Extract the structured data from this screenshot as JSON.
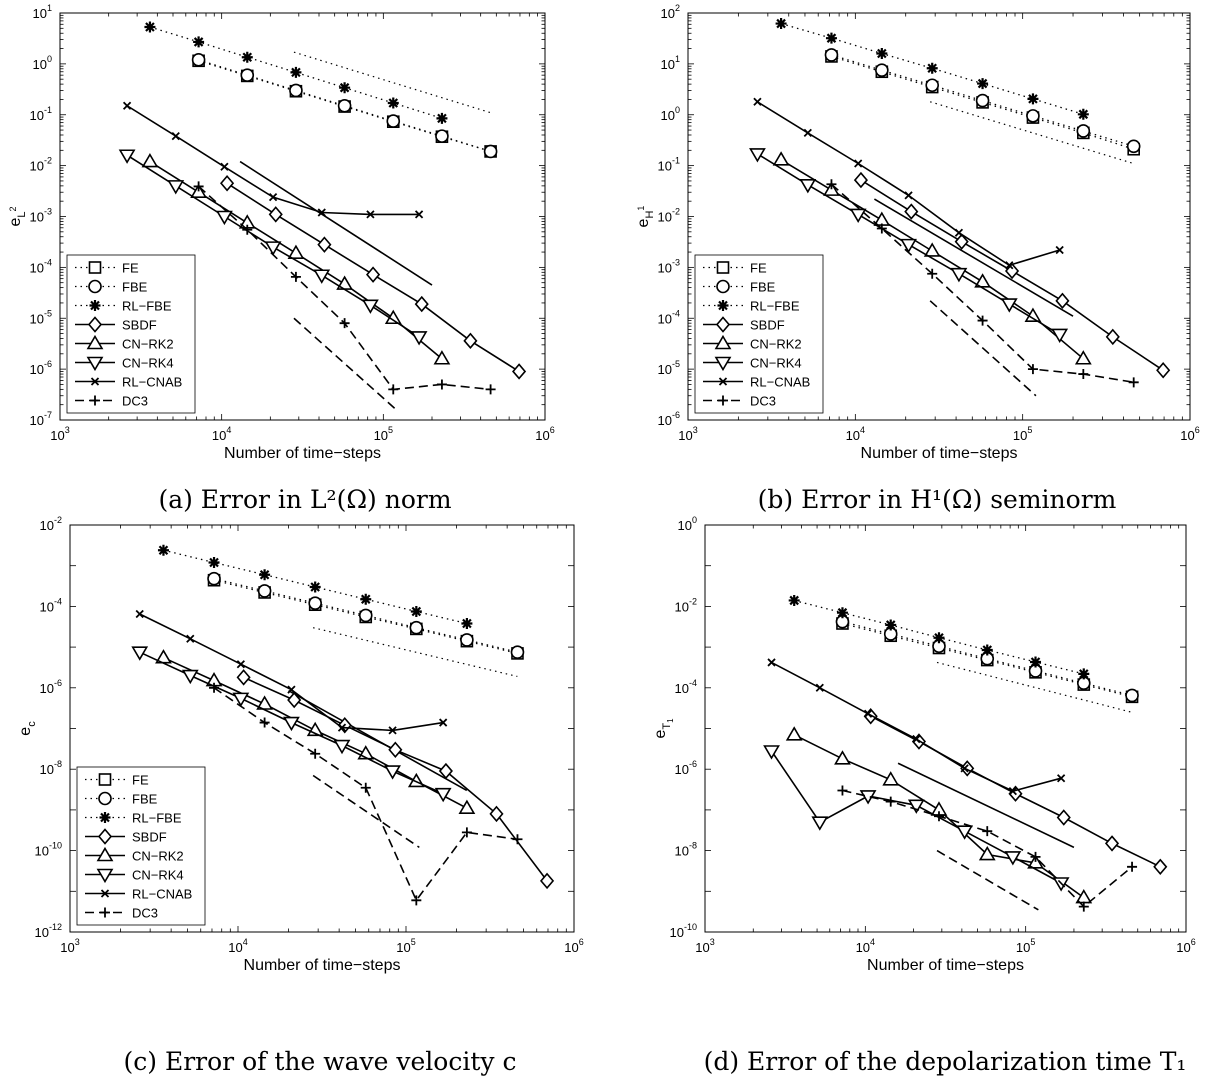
{
  "chart_data": [
    {
      "type": "line",
      "caption": "(a) Error in L²(Ω) norm",
      "xlabel": "Number of time−steps",
      "ylabel": "e_L²",
      "ylabel_main": "e",
      "ylabel_sub": "L",
      "ylabel_sup": "2",
      "xscale": "log",
      "yscale": "log",
      "xlim": [
        1000,
        1000000
      ],
      "ylim": [
        1e-07,
        10
      ],
      "x_ticks": [
        "10^3",
        "10^4",
        "10^5",
        "10^6"
      ],
      "y_ticks": [
        "10^-7",
        "10^-6",
        "10^-5",
        "10^-4",
        "10^-3",
        "10^-2",
        "10^-1",
        "10^0",
        "10^1"
      ],
      "legend_position": "bottom-left",
      "series": [
        {
          "name": "FE",
          "style": "dotted",
          "marker": "square",
          "x": [
            7200,
            14400,
            28800,
            57600,
            115200,
            230400,
            460800
          ],
          "y": [
            1.15,
            0.58,
            0.29,
            0.145,
            0.073,
            0.037,
            0.019
          ]
        },
        {
          "name": "FBE",
          "style": "dotted",
          "marker": "circle",
          "x": [
            7200,
            14400,
            28800,
            57600,
            115200,
            230400,
            460800
          ],
          "y": [
            1.2,
            0.6,
            0.3,
            0.15,
            0.075,
            0.038,
            0.019
          ]
        },
        {
          "name": "RL−FBE",
          "style": "dotted",
          "marker": "star",
          "x": [
            3600,
            7200,
            14400,
            28800,
            57600,
            115200,
            230400
          ],
          "y": [
            5.3,
            2.7,
            1.35,
            0.68,
            0.34,
            0.17,
            0.085
          ]
        },
        {
          "name": "SBDF",
          "style": "solid",
          "marker": "diamond",
          "x": [
            10800,
            21600,
            43200,
            86400,
            172800,
            345600,
            691200
          ],
          "y": [
            0.0045,
            0.0011,
            0.00028,
            7.2e-05,
            1.9e-05,
            3.6e-06,
            9e-07
          ]
        },
        {
          "name": "CN−RK2",
          "style": "solid",
          "marker": "triangle-up",
          "x": [
            3600,
            7200,
            14400,
            28800,
            57600,
            115200,
            230400
          ],
          "y": [
            0.012,
            0.003,
            0.00075,
            0.00019,
            4.7e-05,
            1e-05,
            1.6e-06
          ]
        },
        {
          "name": "CN−RK4",
          "style": "solid",
          "marker": "triangle-down",
          "x": [
            2600,
            5200,
            10400,
            20800,
            41600,
            83200,
            166400
          ],
          "y": [
            0.016,
            0.004,
            0.001,
            0.00025,
            7e-05,
            1.8e-05,
            4.3e-06
          ]
        },
        {
          "name": "RL−CNAB",
          "style": "solid",
          "marker": "x",
          "x": [
            2600,
            5200,
            10400,
            20800,
            41600,
            83200,
            166400
          ],
          "y": [
            0.15,
            0.038,
            0.0095,
            0.0024,
            0.0012,
            0.0011,
            0.0011
          ]
        },
        {
          "name": "DC3",
          "style": "dashed",
          "marker": "plus",
          "x": [
            7200,
            14400,
            28800,
            57600,
            115200,
            230400,
            460800
          ],
          "y": [
            0.0039,
            0.00055,
            6.5e-05,
            8e-06,
            4e-07,
            5e-07,
            4e-07
          ]
        }
      ],
      "reference_lines": [
        {
          "style": "dotted",
          "x": [
            28000,
            460000
          ],
          "y": [
            1.7,
            0.11
          ]
        },
        {
          "style": "solid",
          "x": [
            13000,
            200000
          ],
          "y": [
            0.012,
            4.5e-05
          ]
        },
        {
          "style": "dashed",
          "x": [
            28000,
            120000
          ],
          "y": [
            1e-05,
            1.6e-07
          ]
        }
      ]
    },
    {
      "type": "line",
      "caption": "(b) Error in H¹(Ω) seminorm",
      "xlabel": "Number of time−steps",
      "ylabel": "e_H¹",
      "ylabel_main": "e",
      "ylabel_sub": "H",
      "ylabel_sup": "1",
      "xscale": "log",
      "yscale": "log",
      "xlim": [
        1000,
        1000000
      ],
      "ylim": [
        1e-06,
        100
      ],
      "x_ticks": [
        "10^3",
        "10^4",
        "10^5",
        "10^6"
      ],
      "y_ticks": [
        "10^-6",
        "10^-5",
        "10^-4",
        "10^-3",
        "10^-2",
        "10^-1",
        "10^0",
        "10^1",
        "10^2"
      ],
      "legend_position": "bottom-left",
      "series": [
        {
          "name": "FE",
          "style": "dotted",
          "marker": "square",
          "x": [
            7200,
            14400,
            28800,
            57600,
            115200,
            230400,
            460800
          ],
          "y": [
            14,
            7,
            3.5,
            1.75,
            0.88,
            0.44,
            0.21
          ]
        },
        {
          "name": "FBE",
          "style": "dotted",
          "marker": "circle",
          "x": [
            7200,
            14400,
            28800,
            57600,
            115200,
            230400,
            460800
          ],
          "y": [
            15,
            7.5,
            3.8,
            1.9,
            0.95,
            0.48,
            0.24
          ]
        },
        {
          "name": "RL−FBE",
          "style": "dotted",
          "marker": "star",
          "x": [
            3600,
            7200,
            14400,
            28800,
            57600,
            115200,
            230400
          ],
          "y": [
            62,
            32,
            16,
            8.2,
            4.1,
            2.05,
            1.02
          ]
        },
        {
          "name": "SBDF",
          "style": "solid",
          "marker": "diamond",
          "x": [
            10800,
            21600,
            43200,
            86400,
            172800,
            345600,
            691200
          ],
          "y": [
            0.052,
            0.0125,
            0.0032,
            0.00085,
            0.00022,
            4.3e-05,
            9.5e-06
          ]
        },
        {
          "name": "CN−RK2",
          "style": "solid",
          "marker": "triangle-up",
          "x": [
            3600,
            7200,
            14400,
            28800,
            57600,
            115200,
            230400
          ],
          "y": [
            0.13,
            0.033,
            0.0085,
            0.0021,
            0.00052,
            0.00011,
            1.6e-05
          ]
        },
        {
          "name": "CN−RK4",
          "style": "solid",
          "marker": "triangle-down",
          "x": [
            2600,
            5200,
            10400,
            20800,
            41600,
            83200,
            166400
          ],
          "y": [
            0.17,
            0.042,
            0.011,
            0.0028,
            0.00075,
            0.00019,
            4.8e-05
          ]
        },
        {
          "name": "RL−CNAB",
          "style": "solid",
          "marker": "x",
          "x": [
            2600,
            5200,
            10400,
            20800,
            41600,
            83200,
            166400
          ],
          "y": [
            1.8,
            0.44,
            0.11,
            0.026,
            0.0048,
            0.0011,
            0.0022
          ]
        },
        {
          "name": "DC3",
          "style": "dashed",
          "marker": "plus",
          "x": [
            7200,
            14400,
            28800,
            57600,
            115200,
            230400,
            460800
          ],
          "y": [
            0.043,
            0.0058,
            0.00075,
            9e-05,
            1e-05,
            8e-06,
            5.5e-06
          ]
        }
      ],
      "reference_lines": [
        {
          "style": "dotted",
          "x": [
            28000,
            460000
          ],
          "y": [
            1.8,
            0.11
          ]
        },
        {
          "style": "solid",
          "x": [
            13000,
            200000
          ],
          "y": [
            0.022,
            0.00011
          ]
        },
        {
          "style": "dashed",
          "x": [
            28000,
            120000
          ],
          "y": [
            0.00022,
            3e-06
          ]
        }
      ]
    },
    {
      "type": "line",
      "caption": "(c) Error of the wave velocity c",
      "xlabel": "Number of time−steps",
      "ylabel": "e_c",
      "ylabel_main": "e",
      "ylabel_sub": "c",
      "ylabel_sup": "",
      "xscale": "log",
      "yscale": "log",
      "xlim": [
        1000,
        1000000
      ],
      "ylim": [
        1e-12,
        0.01
      ],
      "x_ticks": [
        "10^3",
        "10^4",
        "10^5",
        "10^6"
      ],
      "y_ticks": [
        "10^-12",
        "10^-10",
        "10^-8",
        "10^-6",
        "10^-4",
        "10^-2"
      ],
      "legend_position": "bottom-left",
      "series": [
        {
          "name": "FE",
          "style": "dotted",
          "marker": "square",
          "x": [
            7200,
            14400,
            28800,
            57600,
            115200,
            230400,
            460800
          ],
          "y": [
            0.00044,
            0.00022,
            0.00011,
            5.5e-05,
            2.8e-05,
            1.4e-05,
            7e-06
          ]
        },
        {
          "name": "FBE",
          "style": "dotted",
          "marker": "circle",
          "x": [
            7200,
            14400,
            28800,
            57600,
            115200,
            230400,
            460800
          ],
          "y": [
            0.00048,
            0.00024,
            0.00012,
            6e-05,
            3e-05,
            1.5e-05,
            7.5e-06
          ]
        },
        {
          "name": "RL−FBE",
          "style": "dotted",
          "marker": "star",
          "x": [
            3600,
            7200,
            14400,
            28800,
            57600,
            115200,
            230400
          ],
          "y": [
            0.0024,
            0.0012,
            0.0006,
            0.0003,
            0.00015,
            7.5e-05,
            3.8e-05
          ]
        },
        {
          "name": "SBDF",
          "style": "solid",
          "marker": "diamond",
          "x": [
            10800,
            21600,
            43200,
            86400,
            172800,
            345600,
            691200
          ],
          "y": [
            1.8e-06,
            5e-07,
            1.2e-07,
            3e-08,
            9e-09,
            8e-10,
            1.8e-11
          ]
        },
        {
          "name": "CN−RK2",
          "style": "solid",
          "marker": "triangle-up",
          "x": [
            3600,
            7200,
            14400,
            28800,
            57600,
            115200,
            230400
          ],
          "y": [
            5.5e-06,
            1.5e-06,
            4e-07,
            9e-08,
            2.4e-08,
            5e-09,
            1.1e-09
          ]
        },
        {
          "name": "CN−RK4",
          "style": "solid",
          "marker": "triangle-down",
          "x": [
            2600,
            5200,
            10400,
            20800,
            41600,
            83200,
            166400
          ],
          "y": [
            7.5e-06,
            2e-06,
            5.5e-07,
            1.4e-07,
            3.8e-08,
            9e-09,
            2.5e-09
          ]
        },
        {
          "name": "RL−CNAB",
          "style": "solid",
          "marker": "x",
          "x": [
            2600,
            5200,
            10400,
            20800,
            41600,
            83200,
            166400
          ],
          "y": [
            6.5e-05,
            1.6e-05,
            3.8e-06,
            9e-07,
            1.05e-07,
            9e-08,
            1.4e-07
          ]
        },
        {
          "name": "DC3",
          "style": "dashed",
          "marker": "plus",
          "x": [
            7200,
            14400,
            28800,
            57600,
            115200,
            230400,
            460800
          ],
          "y": [
            1e-06,
            1.4e-07,
            2.4e-08,
            3.5e-09,
            6e-12,
            2.8e-10,
            1.9e-10
          ]
        }
      ],
      "reference_lines": [
        {
          "style": "dotted",
          "x": [
            28000,
            460000
          ],
          "y": [
            3e-05,
            1.9e-06
          ]
        },
        {
          "style": "solid",
          "x": [
            20000,
            230000
          ],
          "y": [
            8.5e-07,
            3e-09
          ]
        },
        {
          "style": "dashed",
          "x": [
            28000,
            120000
          ],
          "y": [
            7e-09,
            1.2e-10
          ]
        }
      ]
    },
    {
      "type": "line",
      "caption": "(d) Error of the depolarization time T₁",
      "xlabel": "Number of time−steps",
      "ylabel": "e_T₁",
      "ylabel_main": "e",
      "ylabel_sub": "T",
      "ylabel_sub2": "1",
      "ylabel_sup": "",
      "xscale": "log",
      "yscale": "log",
      "xlim": [
        1000,
        1000000
      ],
      "ylim": [
        1e-10,
        1
      ],
      "x_ticks": [
        "10^3",
        "10^4",
        "10^5",
        "10^6"
      ],
      "y_ticks": [
        "10^-10",
        "10^-8",
        "10^-6",
        "10^-4",
        "10^-2",
        "10^0"
      ],
      "legend_position": "none",
      "series": [
        {
          "name": "FE",
          "style": "dotted",
          "marker": "square",
          "x": [
            7200,
            14400,
            28800,
            57600,
            115200,
            230400,
            460800
          ],
          "y": [
            0.0038,
            0.0019,
            0.00095,
            0.00048,
            0.00024,
            0.00012,
            6e-05
          ]
        },
        {
          "name": "FBE",
          "style": "dotted",
          "marker": "circle",
          "x": [
            7200,
            14400,
            28800,
            57600,
            115200,
            230400,
            460800
          ],
          "y": [
            0.0042,
            0.0021,
            0.00105,
            0.00052,
            0.00026,
            0.00013,
            6.5e-05
          ]
        },
        {
          "name": "RL−FBE",
          "style": "dotted",
          "marker": "star",
          "x": [
            3600,
            7200,
            14400,
            28800,
            57600,
            115200,
            230400
          ],
          "y": [
            0.014,
            0.007,
            0.0035,
            0.0017,
            0.00085,
            0.00043,
            0.00022
          ]
        },
        {
          "name": "SBDF",
          "style": "solid",
          "marker": "diamond",
          "x": [
            10800,
            21600,
            43200,
            86400,
            172800,
            345600,
            691200
          ],
          "y": [
            2e-05,
            4.8e-06,
            1.05e-06,
            2.5e-07,
            6.5e-08,
            1.5e-08,
            4e-09
          ]
        },
        {
          "name": "CN−RK2",
          "style": "solid",
          "marker": "triangle-up",
          "x": [
            3600,
            7200,
            14400,
            28800,
            57600,
            115200,
            230400
          ],
          "y": [
            7e-06,
            1.8e-06,
            5.5e-07,
            1e-07,
            8e-09,
            5e-09,
            7e-10
          ]
        },
        {
          "name": "CN−RK4",
          "style": "solid",
          "marker": "triangle-down",
          "x": [
            2600,
            5200,
            10400,
            20800,
            41600,
            83200,
            166400
          ],
          "y": [
            2.8e-06,
            5e-08,
            2.2e-07,
            1.3e-07,
            3e-08,
            7e-09,
            1.6e-09
          ]
        },
        {
          "name": "RL−CNAB",
          "style": "solid",
          "marker": "x",
          "x": [
            2600,
            5200,
            10400,
            20800,
            41600,
            83200,
            166400
          ],
          "y": [
            0.00042,
            0.0001,
            2.3e-05,
            5.5e-06,
            1.05e-06,
            2.9e-07,
            6e-07
          ]
        },
        {
          "name": "DC3",
          "style": "dashed",
          "marker": "plus",
          "x": [
            7200,
            14400,
            28800,
            57600,
            115200,
            230400,
            460800
          ],
          "y": [
            3e-07,
            1.6e-07,
            7e-08,
            3e-08,
            7e-09,
            4.2e-10,
            4e-09
          ]
        }
      ],
      "reference_lines": [
        {
          "style": "dotted",
          "x": [
            28000,
            460000
          ],
          "y": [
            0.00042,
            2.5e-05
          ]
        },
        {
          "style": "solid",
          "x": [
            16000,
            200000
          ],
          "y": [
            1.4e-06,
            1.2e-08
          ]
        },
        {
          "style": "dashed",
          "x": [
            28000,
            120000
          ],
          "y": [
            1e-08,
            3.5e-10
          ]
        }
      ]
    }
  ]
}
